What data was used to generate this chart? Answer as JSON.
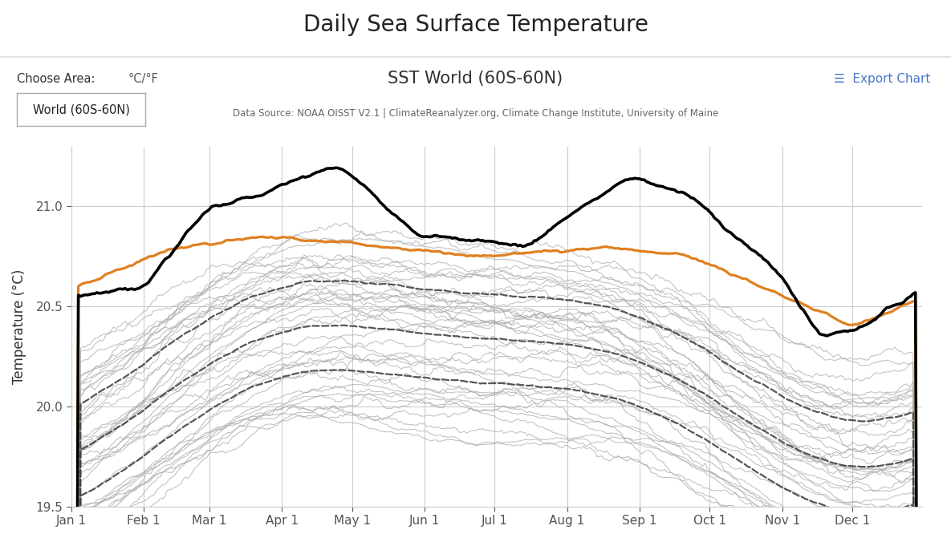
{
  "title": "Daily Sea Surface Temperature",
  "subtitle": "SST World (60S-60N)",
  "datasource": "Data Source: NOAA OISST V2.1 | ClimateReanalyzer.org, Climate Change Institute, University of Maine",
  "ylabel": "Temperature (°C)",
  "choose_area_label": "Choose Area:",
  "celsius_label": "°C/°F",
  "area_button": "World (60S-60N)",
  "export_label": "☰  Export Chart",
  "ylim": [
    19.5,
    21.3
  ],
  "yticks": [
    19.5,
    20.0,
    20.5,
    21.0
  ],
  "background_color": "#ffffff",
  "plot_bg_color": "#ffffff",
  "grid_color": "#cccccc",
  "historical_color": "#aaaaaa",
  "dashed_color": "#444444",
  "year2023_color": "#000000",
  "year2022_color": "#e08020",
  "months": [
    "Jan 1",
    "Feb 1",
    "Mar 1",
    "Apr 1",
    "May 1",
    "Jun 1",
    "Jul 1",
    "Aug 1",
    "Sep 1",
    "Oct 1",
    "Nov 1",
    "Dec 1"
  ],
  "month_days": [
    0,
    31,
    59,
    90,
    120,
    151,
    181,
    212,
    243,
    273,
    304,
    334
  ]
}
